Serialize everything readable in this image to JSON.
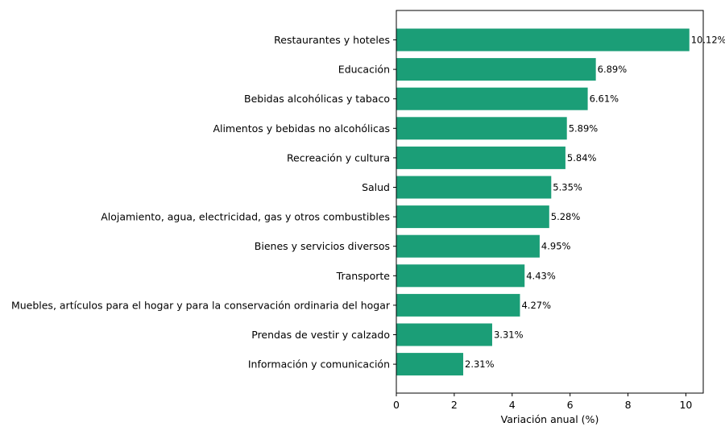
{
  "chart_data": {
    "type": "bar",
    "orientation": "horizontal",
    "title": "",
    "xlabel": "Variación anual (%)",
    "ylabel": "",
    "xlim": [
      0,
      10.6
    ],
    "xticks": [
      "0",
      "2",
      "4",
      "6",
      "8",
      "10"
    ],
    "grid": false,
    "bar_color": "#1b9e77",
    "categories": [
      "Restaurantes y hoteles",
      "Educación",
      "Bebidas alcohólicas y tabaco",
      "Alimentos y bebidas no alcohólicas",
      "Recreación y cultura",
      "Salud",
      "Alojamiento, agua, electricidad, gas y otros combustibles",
      "Bienes y servicios diversos",
      "Transporte",
      "Muebles, artículos para el hogar y para la conservación ordinaria del hogar",
      "Prendas de vestir y calzado",
      "Información y comunicación"
    ],
    "values": [
      10.12,
      6.89,
      6.61,
      5.89,
      5.84,
      5.35,
      5.28,
      4.95,
      4.43,
      4.27,
      3.31,
      2.31
    ],
    "value_labels": [
      "10.12%",
      "6.89%",
      "6.61%",
      "5.89%",
      "5.84%",
      "5.35%",
      "5.28%",
      "4.95%",
      "4.43%",
      "4.27%",
      "3.31%",
      "2.31%"
    ]
  }
}
